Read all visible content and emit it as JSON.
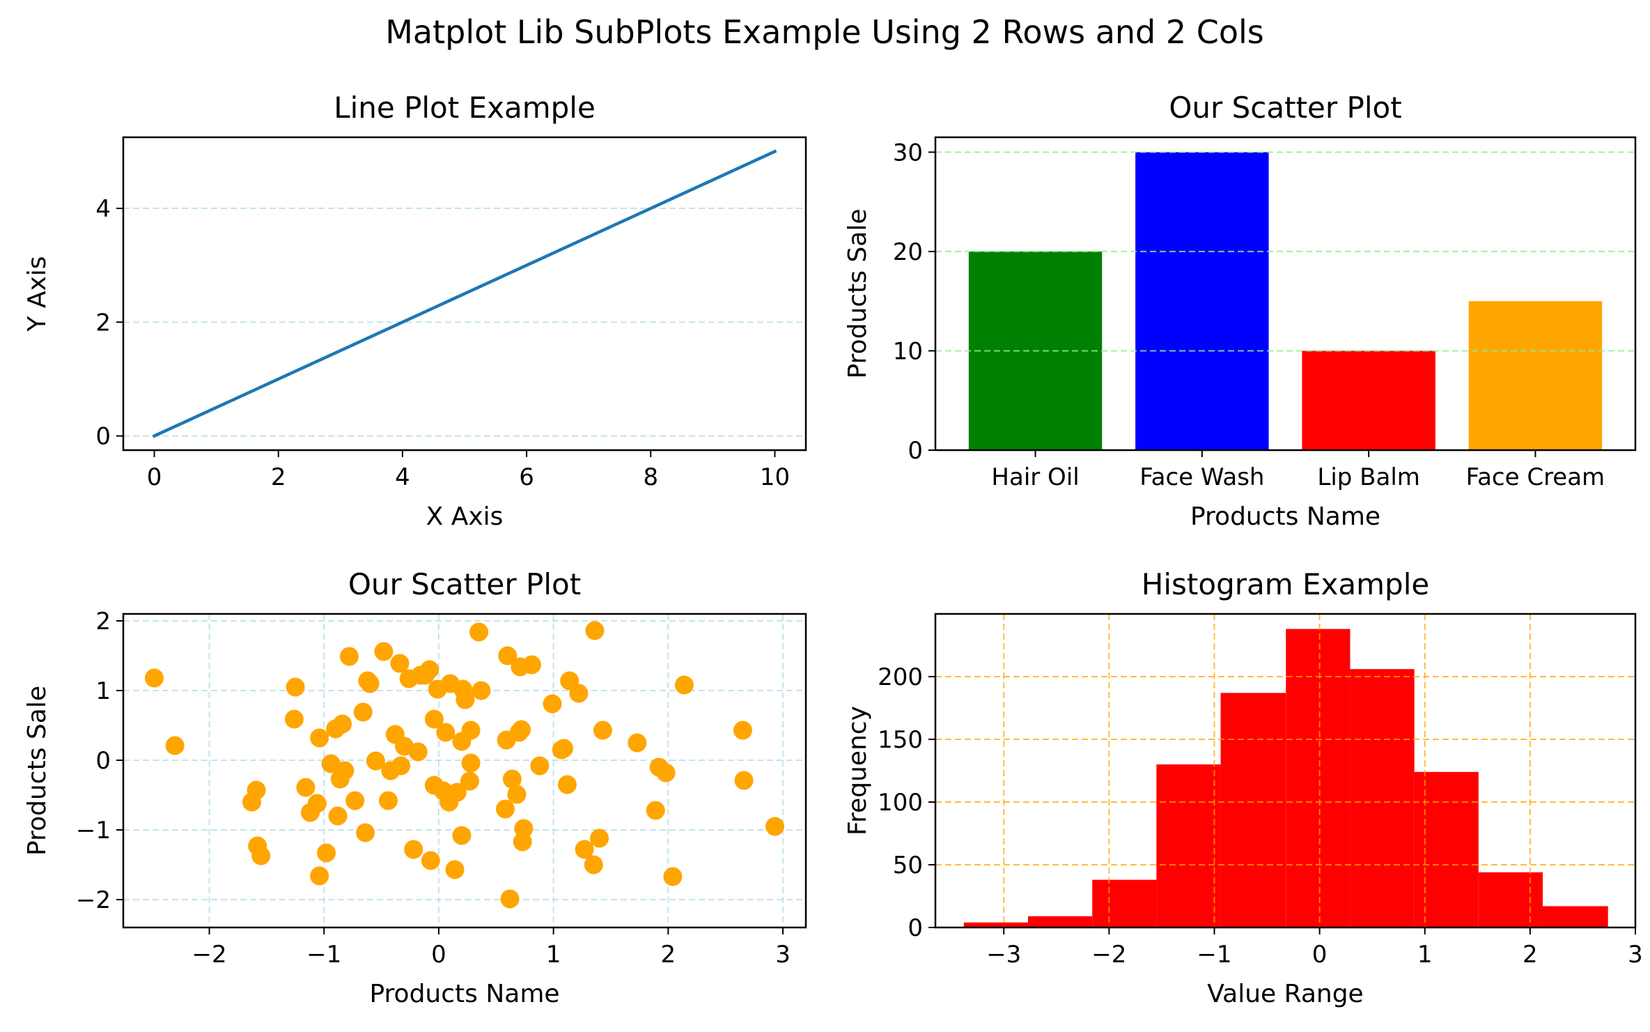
{
  "suptitle": "Matplot Lib SubPlots Example Using 2 Rows and 2 Cols",
  "colors": {
    "line": "#1f77b4",
    "scatter": "#ffa500",
    "hist": "#ff0000",
    "grid_lightblue": "#add8e6",
    "grid_lightgreen": "#90ee90",
    "grid_orange": "#ffa500"
  },
  "chart_data": [
    {
      "type": "line",
      "title": "Line Plot Example",
      "xlabel": "X Axis",
      "ylabel": "Y Axis",
      "xlim": [
        -0.5,
        10.5
      ],
      "ylim": [
        -0.25,
        5.25
      ],
      "xticks": [
        0,
        2,
        4,
        6,
        8,
        10
      ],
      "yticks": [
        0,
        2,
        4
      ],
      "grid": "y, dashed, lightblue",
      "series": [
        {
          "x": [
            0,
            10
          ],
          "y": [
            0,
            5
          ]
        }
      ]
    },
    {
      "type": "bar",
      "title": "Our Scatter Plot",
      "xlabel": "Products Name",
      "ylabel": "Products Sale",
      "categories": [
        "Hair Oil",
        "Face Wash",
        "Lip Balm",
        "Face Cream"
      ],
      "values": [
        20,
        30,
        10,
        15
      ],
      "bar_colors": [
        "#008000",
        "#0000ff",
        "#ff0000",
        "#ffa500"
      ],
      "ylim": [
        0,
        31.5
      ],
      "yticks": [
        0,
        10,
        20,
        30
      ],
      "grid": "y, dashed, lightgreen"
    },
    {
      "type": "scatter",
      "title": "Our Scatter Plot",
      "xlabel": "Products Name",
      "ylabel": "Products Sale",
      "xlim": [
        -2.75,
        3.2
      ],
      "ylim": [
        -2.4,
        2.1
      ],
      "xticks": [
        -2,
        -1,
        0,
        1,
        2,
        3
      ],
      "yticks": [
        -2,
        -1,
        0,
        1,
        2
      ],
      "grid": "both, dashed, lightblue",
      "x": [
        -2.48,
        -2.3,
        -1.63,
        -1.59,
        -1.58,
        -1.55,
        -1.26,
        -1.25,
        -1.16,
        -1.12,
        -1.06,
        -1.04,
        -1.04,
        -0.98,
        -0.94,
        -0.9,
        -0.88,
        -0.86,
        -0.84,
        -0.82,
        -0.78,
        -0.73,
        -0.66,
        -0.64,
        -0.62,
        -0.6,
        -0.55,
        -0.48,
        -0.44,
        -0.42,
        -0.38,
        -0.34,
        -0.33,
        -0.3,
        -0.26,
        -0.22,
        -0.18,
        -0.16,
        -0.12,
        -0.08,
        -0.07,
        -0.04,
        -0.04,
        -0.01,
        0.04,
        0.06,
        0.09,
        0.1,
        0.14,
        0.16,
        0.2,
        0.2,
        0.21,
        0.23,
        0.27,
        0.28,
        0.28,
        0.35,
        0.37,
        0.58,
        0.59,
        0.6,
        0.62,
        0.64,
        0.68,
        0.7,
        0.71,
        0.72,
        0.73,
        0.74,
        0.81,
        0.88,
        0.99,
        1.07,
        1.09,
        1.12,
        1.14,
        1.22,
        1.27,
        1.35,
        1.36,
        1.4,
        1.43,
        1.73,
        1.89,
        1.92,
        1.98,
        2.04,
        2.14,
        2.65,
        2.66,
        2.93
      ],
      "y": [
        1.18,
        0.21,
        -0.6,
        -0.43,
        -1.23,
        -1.37,
        0.59,
        1.05,
        -0.39,
        -0.75,
        -0.62,
        0.32,
        -1.66,
        -1.33,
        -0.05,
        0.45,
        -0.8,
        -0.27,
        0.52,
        -0.15,
        1.49,
        -0.58,
        0.69,
        -1.04,
        1.14,
        1.1,
        -0.01,
        1.56,
        -0.58,
        -0.15,
        0.37,
        1.39,
        -0.08,
        0.2,
        1.17,
        -1.28,
        0.12,
        1.22,
        1.22,
        1.3,
        -1.44,
        0.59,
        -0.36,
        1.02,
        -0.44,
        0.4,
        -0.6,
        1.1,
        -1.57,
        -0.46,
        -1.08,
        0.27,
        1.02,
        0.87,
        -0.3,
        0.43,
        -0.04,
        1.84,
        1.0,
        -0.7,
        0.29,
        1.5,
        -1.99,
        -0.27,
        -0.49,
        0.4,
        1.34,
        0.44,
        -1.17,
        -0.98,
        1.37,
        -0.08,
        0.81,
        0.15,
        0.17,
        -0.35,
        1.14,
        0.96,
        -1.28,
        -1.5,
        1.86,
        -1.12,
        0.43,
        0.25,
        -0.72,
        -0.1,
        -0.18,
        -1.67,
        1.08,
        0.43,
        -0.29,
        -0.95
      ],
      "extra_y_note": "",
      "color": "#ffa500"
    },
    {
      "type": "bar",
      "subtype": "histogram",
      "title": "Histogram Example",
      "xlabel": "Value Range",
      "ylabel": "Frequency",
      "xlim": [
        -3.65,
        3.0
      ],
      "ylim": [
        0,
        250
      ],
      "xticks": [
        -3,
        -2,
        -1,
        0,
        1,
        2,
        3
      ],
      "yticks": [
        0,
        50,
        100,
        150,
        200
      ],
      "grid": "both, dashed, orange",
      "bin_edges": [
        -3.38,
        -2.77,
        -2.16,
        -1.55,
        -0.94,
        -0.32,
        0.29,
        0.9,
        1.51,
        2.12,
        2.74
      ],
      "values": [
        4,
        9,
        38,
        130,
        187,
        238,
        206,
        124,
        44,
        17
      ]
    }
  ]
}
